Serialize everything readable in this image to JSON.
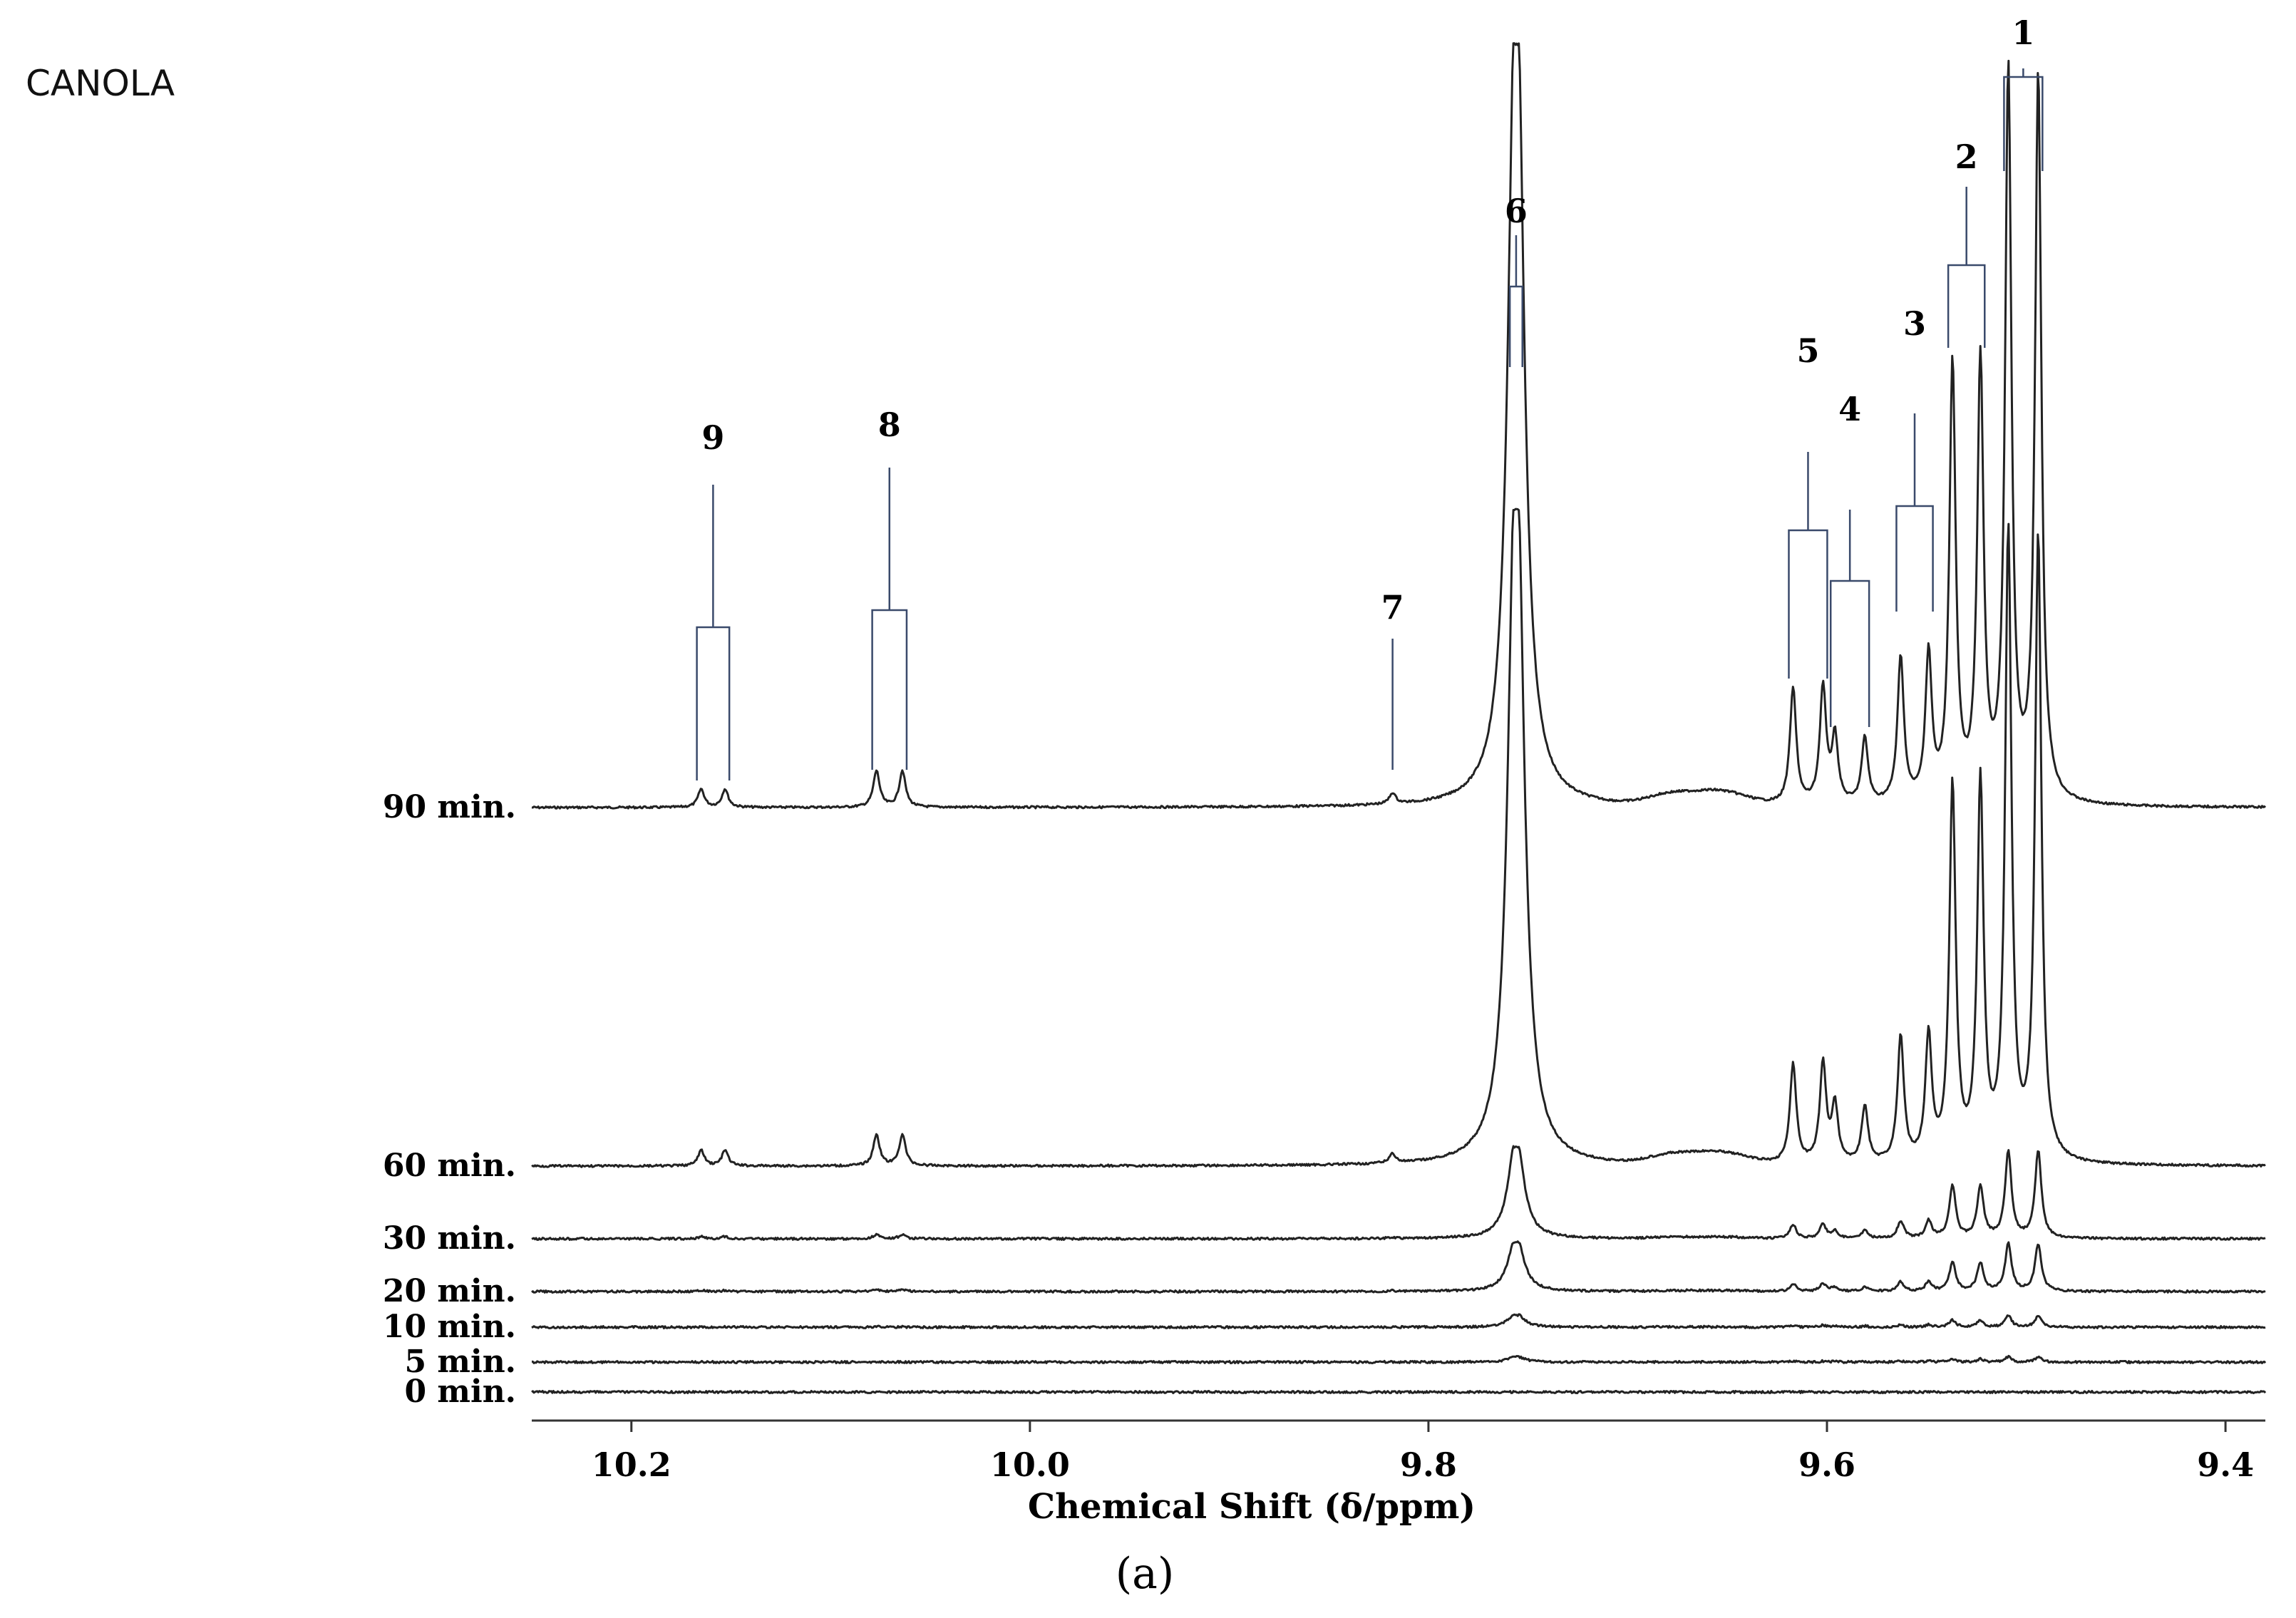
{
  "chart_data": {
    "type": "line",
    "title": "CANOLA",
    "panel_label": "(a)",
    "xlabel": "Chemical Shift (δ/ppm)",
    "xlim": [
      10.25,
      9.38
    ],
    "x_reversed": true,
    "x_ticks": [
      "10.2",
      "10.0",
      "9.8",
      "9.6",
      "9.4"
    ],
    "x_tick_values": [
      10.2,
      10.0,
      9.8,
      9.6,
      9.4
    ],
    "grid": false,
    "series": [
      {
        "name": "90 min.",
        "scale": 1.0
      },
      {
        "name": "60 min.",
        "scale": 0.86
      },
      {
        "name": "30 min.",
        "scale": 0.12
      },
      {
        "name": "20 min.",
        "scale": 0.065
      },
      {
        "name": "10 min.",
        "scale": 0.016
      },
      {
        "name": "5 min.",
        "scale": 0.007
      },
      {
        "name": "0 min.",
        "scale": 0.0
      }
    ],
    "peaks": [
      {
        "label": "1",
        "ppm": [
          9.509,
          9.494
        ],
        "relative_intensity": 1.0
      },
      {
        "label": "2",
        "ppm": [
          9.537,
          9.523
        ],
        "relative_intensity": 0.6
      },
      {
        "label": "3",
        "ppm": [
          9.563,
          9.549
        ],
        "relative_intensity": 0.2
      },
      {
        "label": "4",
        "ppm": [
          9.596,
          9.581
        ],
        "relative_intensity": 0.09
      },
      {
        "label": "5",
        "ppm": [
          9.617,
          9.602
        ],
        "relative_intensity": 0.16
      },
      {
        "label": "6",
        "ppm": [
          9.757,
          9.755
        ],
        "relative_intensity": 0.62
      },
      {
        "label": "7",
        "ppm": [
          9.818
        ],
        "relative_intensity": 0.015
      },
      {
        "label": "8",
        "ppm": [
          10.077,
          10.064
        ],
        "relative_intensity": 0.05
      },
      {
        "label": "9",
        "ppm": [
          10.165,
          10.153
        ],
        "relative_intensity": 0.025
      }
    ]
  }
}
